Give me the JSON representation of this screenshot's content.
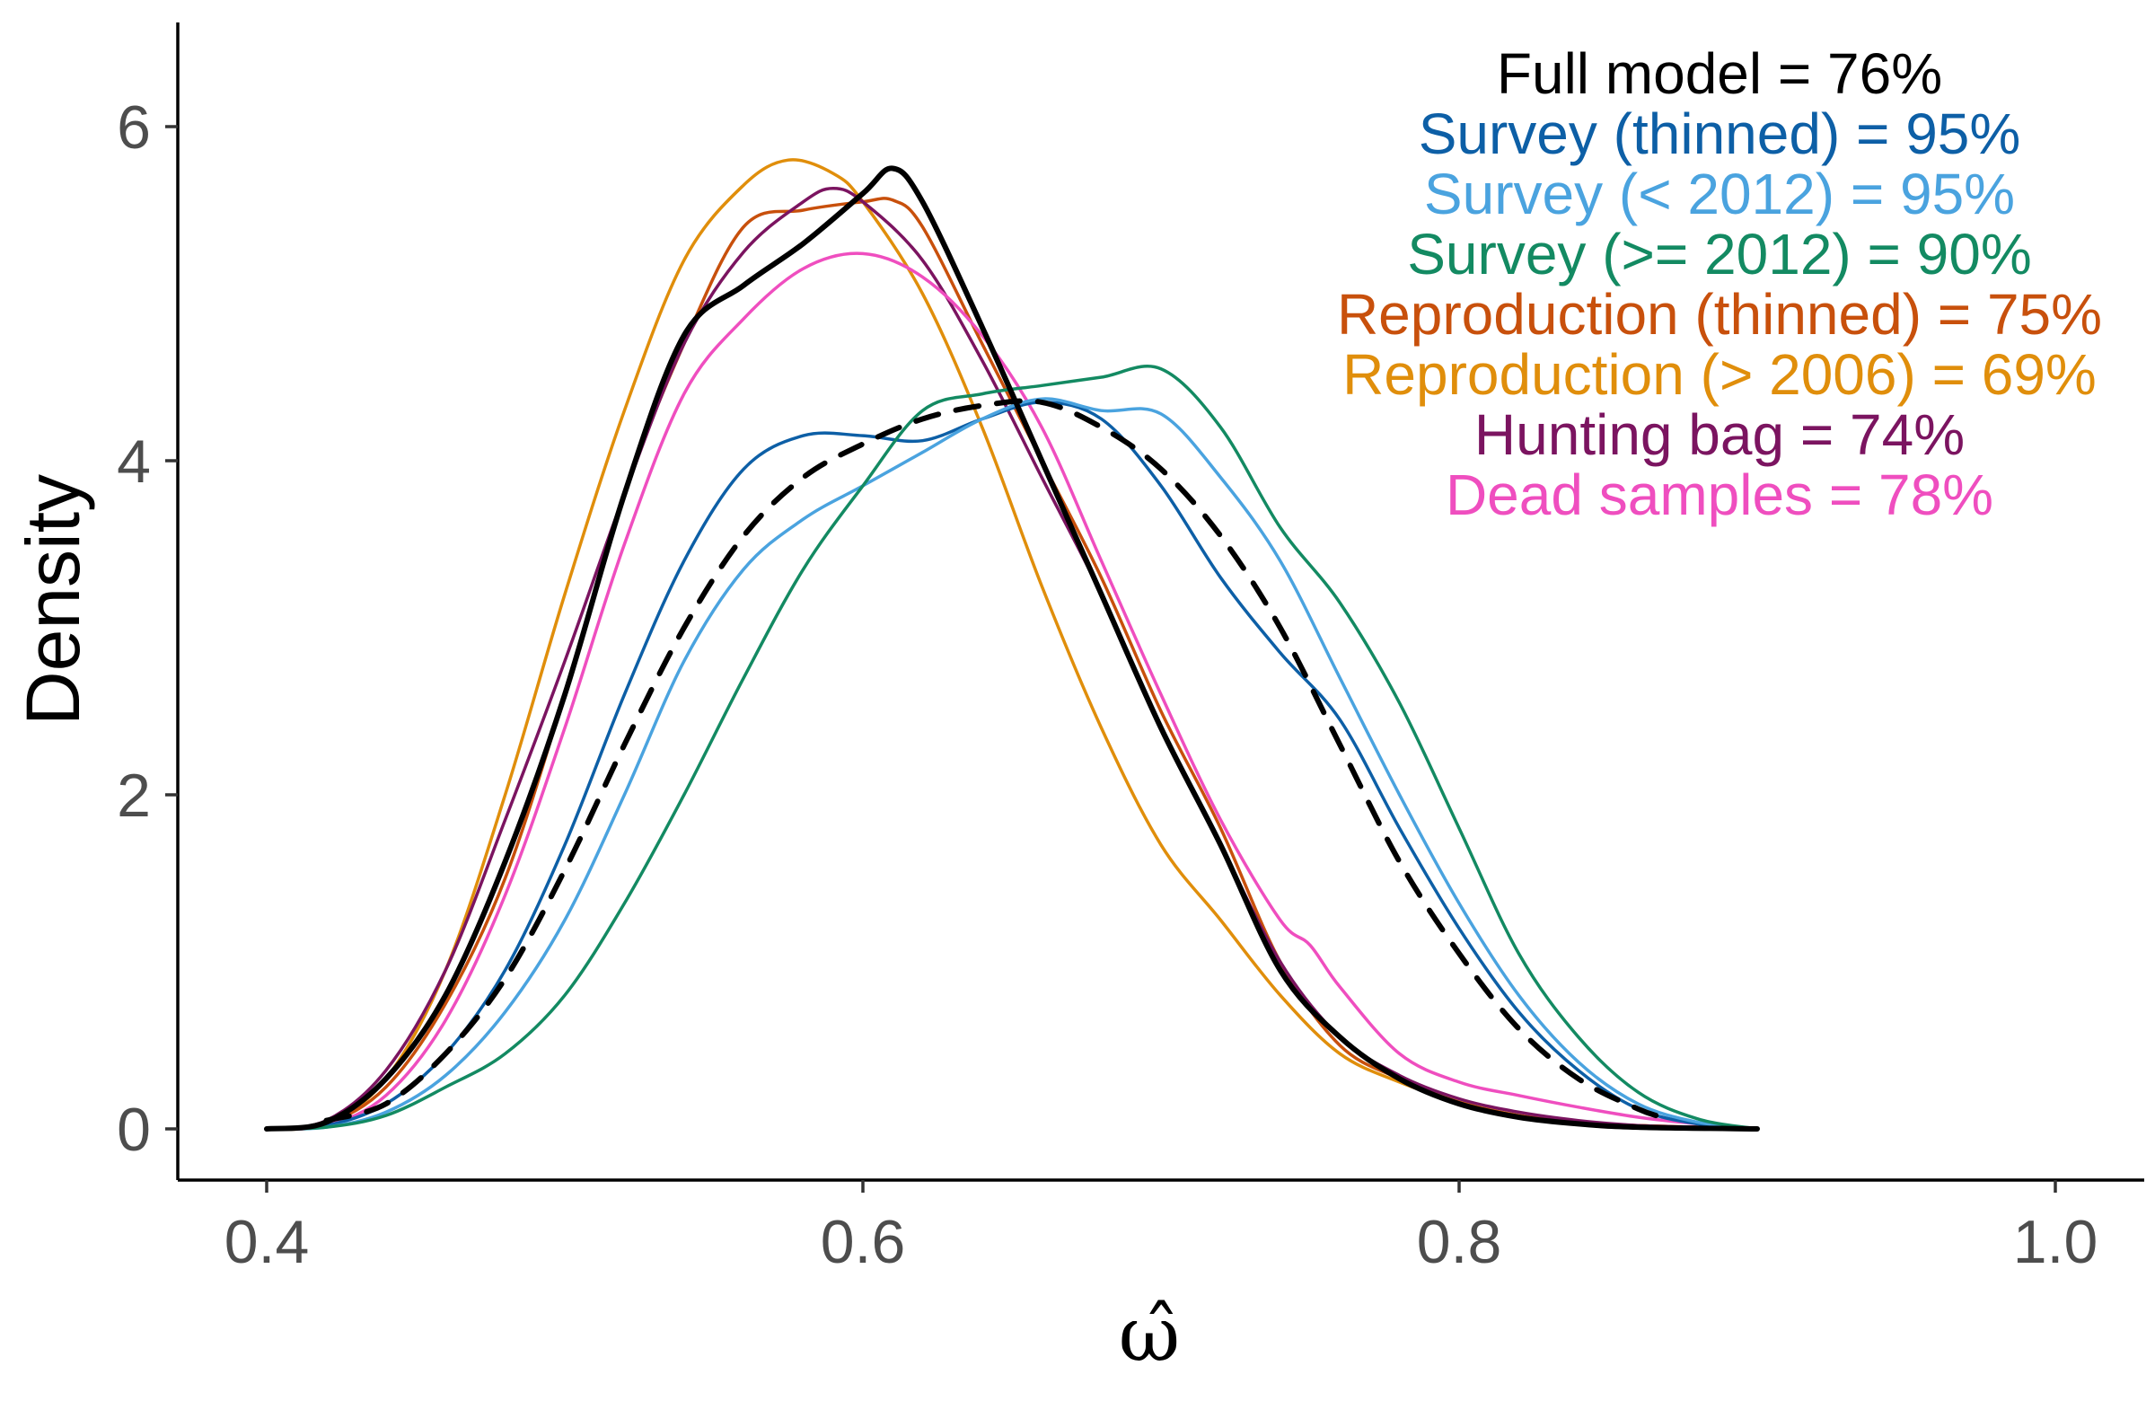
{
  "chart_data": {
    "type": "line",
    "xlabel": "ω̂",
    "ylabel": "Density",
    "xlim": [
      0.37,
      1.03
    ],
    "ylim": [
      -0.3,
      6.6
    ],
    "xticks": [
      0.4,
      0.6,
      0.8,
      1.0
    ],
    "xtick_labels": [
      "0.4",
      "0.6",
      "0.8",
      "1.0"
    ],
    "yticks": [
      0,
      2,
      4,
      6
    ],
    "ytick_labels": [
      "0",
      "2",
      "4",
      "6"
    ],
    "grid": false,
    "legend_placement": "top-right",
    "legend": [
      {
        "text": "Full model = 76%",
        "color": "#000000"
      },
      {
        "text": "Survey (thinned) = 95%",
        "color": "#0d5fa6"
      },
      {
        "text": "Survey (< 2012) = 95%",
        "color": "#4aa3df"
      },
      {
        "text": "Survey (>= 2012) = 90%",
        "color": "#138a62"
      },
      {
        "text": "Reproduction (thinned) = 75%",
        "color": "#c8500c"
      },
      {
        "text": "Reproduction (> 2006) = 69%",
        "color": "#e08e0b"
      },
      {
        "text": "Hunting bag = 74%",
        "color": "#7b1460"
      },
      {
        "text": "Dead samples = 78%",
        "color": "#ef4ebf"
      }
    ],
    "series": [
      {
        "color": "#e08e0b",
        "style": "solid",
        "width": 3.5,
        "points": [
          [
            0.4,
            0.0
          ],
          [
            0.42,
            0.03
          ],
          [
            0.44,
            0.3
          ],
          [
            0.46,
            0.95
          ],
          [
            0.48,
            2.0
          ],
          [
            0.5,
            3.2
          ],
          [
            0.52,
            4.3
          ],
          [
            0.54,
            5.2
          ],
          [
            0.56,
            5.65
          ],
          [
            0.575,
            5.8
          ],
          [
            0.59,
            5.72
          ],
          [
            0.6,
            5.55
          ],
          [
            0.62,
            5.0
          ],
          [
            0.64,
            4.2
          ],
          [
            0.66,
            3.25
          ],
          [
            0.68,
            2.4
          ],
          [
            0.7,
            1.7
          ],
          [
            0.72,
            1.25
          ],
          [
            0.74,
            0.8
          ],
          [
            0.76,
            0.45
          ],
          [
            0.78,
            0.28
          ],
          [
            0.8,
            0.16
          ],
          [
            0.82,
            0.08
          ],
          [
            0.84,
            0.04
          ],
          [
            0.86,
            0.02
          ],
          [
            0.88,
            0.01
          ],
          [
            0.9,
            0.0
          ]
        ]
      },
      {
        "color": "#c8500c",
        "style": "solid",
        "width": 3.5,
        "points": [
          [
            0.4,
            0.0
          ],
          [
            0.42,
            0.03
          ],
          [
            0.44,
            0.25
          ],
          [
            0.46,
            0.75
          ],
          [
            0.48,
            1.5
          ],
          [
            0.5,
            2.6
          ],
          [
            0.52,
            3.8
          ],
          [
            0.54,
            4.7
          ],
          [
            0.56,
            5.4
          ],
          [
            0.58,
            5.5
          ],
          [
            0.6,
            5.55
          ],
          [
            0.61,
            5.56
          ],
          [
            0.62,
            5.4
          ],
          [
            0.64,
            4.7
          ],
          [
            0.66,
            4.0
          ],
          [
            0.68,
            3.3
          ],
          [
            0.7,
            2.5
          ],
          [
            0.72,
            1.8
          ],
          [
            0.74,
            1.0
          ],
          [
            0.76,
            0.5
          ],
          [
            0.78,
            0.3
          ],
          [
            0.8,
            0.16
          ],
          [
            0.82,
            0.08
          ],
          [
            0.84,
            0.04
          ],
          [
            0.86,
            0.02
          ],
          [
            0.88,
            0.01
          ],
          [
            0.9,
            0.0
          ]
        ]
      },
      {
        "color": "#7b1460",
        "style": "solid",
        "width": 3.5,
        "points": [
          [
            0.4,
            0.0
          ],
          [
            0.42,
            0.05
          ],
          [
            0.44,
            0.35
          ],
          [
            0.46,
            0.95
          ],
          [
            0.48,
            1.85
          ],
          [
            0.5,
            2.8
          ],
          [
            0.52,
            3.8
          ],
          [
            0.54,
            4.7
          ],
          [
            0.56,
            5.25
          ],
          [
            0.58,
            5.55
          ],
          [
            0.59,
            5.63
          ],
          [
            0.6,
            5.55
          ],
          [
            0.62,
            5.2
          ],
          [
            0.64,
            4.6
          ],
          [
            0.66,
            3.9
          ],
          [
            0.68,
            3.2
          ],
          [
            0.7,
            2.4
          ],
          [
            0.72,
            1.7
          ],
          [
            0.74,
            1.0
          ],
          [
            0.76,
            0.55
          ],
          [
            0.78,
            0.32
          ],
          [
            0.8,
            0.18
          ],
          [
            0.82,
            0.1
          ],
          [
            0.84,
            0.05
          ],
          [
            0.86,
            0.02
          ],
          [
            0.88,
            0.01
          ],
          [
            0.9,
            0.0
          ]
        ]
      },
      {
        "color": "#ef4ebf",
        "style": "solid",
        "width": 3.5,
        "points": [
          [
            0.4,
            0.0
          ],
          [
            0.42,
            0.02
          ],
          [
            0.44,
            0.2
          ],
          [
            0.46,
            0.65
          ],
          [
            0.48,
            1.4
          ],
          [
            0.5,
            2.4
          ],
          [
            0.52,
            3.5
          ],
          [
            0.54,
            4.4
          ],
          [
            0.56,
            4.85
          ],
          [
            0.58,
            5.15
          ],
          [
            0.6,
            5.24
          ],
          [
            0.62,
            5.1
          ],
          [
            0.64,
            4.75
          ],
          [
            0.66,
            4.2
          ],
          [
            0.68,
            3.4
          ],
          [
            0.7,
            2.6
          ],
          [
            0.72,
            1.85
          ],
          [
            0.74,
            1.25
          ],
          [
            0.75,
            1.1
          ],
          [
            0.76,
            0.85
          ],
          [
            0.78,
            0.45
          ],
          [
            0.8,
            0.28
          ],
          [
            0.82,
            0.2
          ],
          [
            0.84,
            0.13
          ],
          [
            0.86,
            0.07
          ],
          [
            0.88,
            0.03
          ],
          [
            0.9,
            0.0
          ]
        ]
      },
      {
        "color": "#0d5fa6",
        "style": "solid",
        "width": 3.5,
        "points": [
          [
            0.4,
            0.0
          ],
          [
            0.42,
            0.02
          ],
          [
            0.44,
            0.15
          ],
          [
            0.46,
            0.45
          ],
          [
            0.48,
            0.95
          ],
          [
            0.5,
            1.7
          ],
          [
            0.52,
            2.6
          ],
          [
            0.54,
            3.4
          ],
          [
            0.56,
            3.95
          ],
          [
            0.58,
            4.15
          ],
          [
            0.6,
            4.15
          ],
          [
            0.62,
            4.12
          ],
          [
            0.64,
            4.25
          ],
          [
            0.66,
            4.35
          ],
          [
            0.68,
            4.25
          ],
          [
            0.7,
            3.85
          ],
          [
            0.72,
            3.3
          ],
          [
            0.74,
            2.85
          ],
          [
            0.76,
            2.45
          ],
          [
            0.78,
            1.8
          ],
          [
            0.8,
            1.2
          ],
          [
            0.82,
            0.7
          ],
          [
            0.84,
            0.35
          ],
          [
            0.86,
            0.12
          ],
          [
            0.88,
            0.03
          ],
          [
            0.9,
            0.0
          ]
        ]
      },
      {
        "color": "#4aa3df",
        "style": "solid",
        "width": 3.5,
        "points": [
          [
            0.4,
            0.0
          ],
          [
            0.42,
            0.01
          ],
          [
            0.44,
            0.1
          ],
          [
            0.46,
            0.32
          ],
          [
            0.48,
            0.7
          ],
          [
            0.5,
            1.25
          ],
          [
            0.52,
            2.0
          ],
          [
            0.54,
            2.8
          ],
          [
            0.56,
            3.35
          ],
          [
            0.58,
            3.65
          ],
          [
            0.6,
            3.85
          ],
          [
            0.62,
            4.05
          ],
          [
            0.64,
            4.25
          ],
          [
            0.66,
            4.37
          ],
          [
            0.68,
            4.3
          ],
          [
            0.7,
            4.28
          ],
          [
            0.72,
            3.9
          ],
          [
            0.74,
            3.4
          ],
          [
            0.76,
            2.7
          ],
          [
            0.78,
            2.0
          ],
          [
            0.8,
            1.35
          ],
          [
            0.82,
            0.8
          ],
          [
            0.84,
            0.4
          ],
          [
            0.86,
            0.15
          ],
          [
            0.88,
            0.04
          ],
          [
            0.9,
            0.0
          ]
        ]
      },
      {
        "color": "#138a62",
        "style": "solid",
        "width": 3.5,
        "points": [
          [
            0.4,
            0.0
          ],
          [
            0.42,
            0.01
          ],
          [
            0.44,
            0.08
          ],
          [
            0.46,
            0.25
          ],
          [
            0.48,
            0.45
          ],
          [
            0.5,
            0.8
          ],
          [
            0.52,
            1.35
          ],
          [
            0.54,
            2.0
          ],
          [
            0.56,
            2.7
          ],
          [
            0.58,
            3.35
          ],
          [
            0.6,
            3.85
          ],
          [
            0.62,
            4.3
          ],
          [
            0.64,
            4.4
          ],
          [
            0.66,
            4.45
          ],
          [
            0.68,
            4.5
          ],
          [
            0.7,
            4.55
          ],
          [
            0.72,
            4.2
          ],
          [
            0.74,
            3.6
          ],
          [
            0.76,
            3.15
          ],
          [
            0.78,
            2.55
          ],
          [
            0.8,
            1.8
          ],
          [
            0.82,
            1.05
          ],
          [
            0.84,
            0.55
          ],
          [
            0.86,
            0.22
          ],
          [
            0.88,
            0.06
          ],
          [
            0.9,
            0.0
          ]
        ]
      },
      {
        "color": "#000000",
        "style": "dashed",
        "width": 6,
        "points": [
          [
            0.42,
            0.05
          ],
          [
            0.44,
            0.15
          ],
          [
            0.46,
            0.45
          ],
          [
            0.48,
            0.9
          ],
          [
            0.5,
            1.55
          ],
          [
            0.52,
            2.3
          ],
          [
            0.54,
            3.0
          ],
          [
            0.56,
            3.55
          ],
          [
            0.58,
            3.9
          ],
          [
            0.6,
            4.1
          ],
          [
            0.62,
            4.25
          ],
          [
            0.64,
            4.33
          ],
          [
            0.66,
            4.35
          ],
          [
            0.68,
            4.2
          ],
          [
            0.7,
            3.95
          ],
          [
            0.72,
            3.55
          ],
          [
            0.74,
            3.0
          ],
          [
            0.76,
            2.3
          ],
          [
            0.78,
            1.6
          ],
          [
            0.8,
            1.05
          ],
          [
            0.82,
            0.6
          ],
          [
            0.84,
            0.3
          ],
          [
            0.86,
            0.12
          ],
          [
            0.87,
            0.06
          ]
        ]
      },
      {
        "color": "#000000",
        "style": "solid",
        "width": 6,
        "points": [
          [
            0.4,
            0.0
          ],
          [
            0.42,
            0.04
          ],
          [
            0.44,
            0.3
          ],
          [
            0.46,
            0.8
          ],
          [
            0.48,
            1.6
          ],
          [
            0.5,
            2.6
          ],
          [
            0.52,
            3.8
          ],
          [
            0.54,
            4.75
          ],
          [
            0.56,
            5.05
          ],
          [
            0.58,
            5.3
          ],
          [
            0.6,
            5.6
          ],
          [
            0.61,
            5.75
          ],
          [
            0.62,
            5.55
          ],
          [
            0.64,
            4.8
          ],
          [
            0.66,
            4.0
          ],
          [
            0.68,
            3.2
          ],
          [
            0.7,
            2.4
          ],
          [
            0.72,
            1.7
          ],
          [
            0.74,
            0.95
          ],
          [
            0.76,
            0.55
          ],
          [
            0.78,
            0.3
          ],
          [
            0.8,
            0.15
          ],
          [
            0.82,
            0.07
          ],
          [
            0.84,
            0.03
          ],
          [
            0.86,
            0.01
          ],
          [
            0.9,
            0.0
          ]
        ]
      }
    ]
  }
}
